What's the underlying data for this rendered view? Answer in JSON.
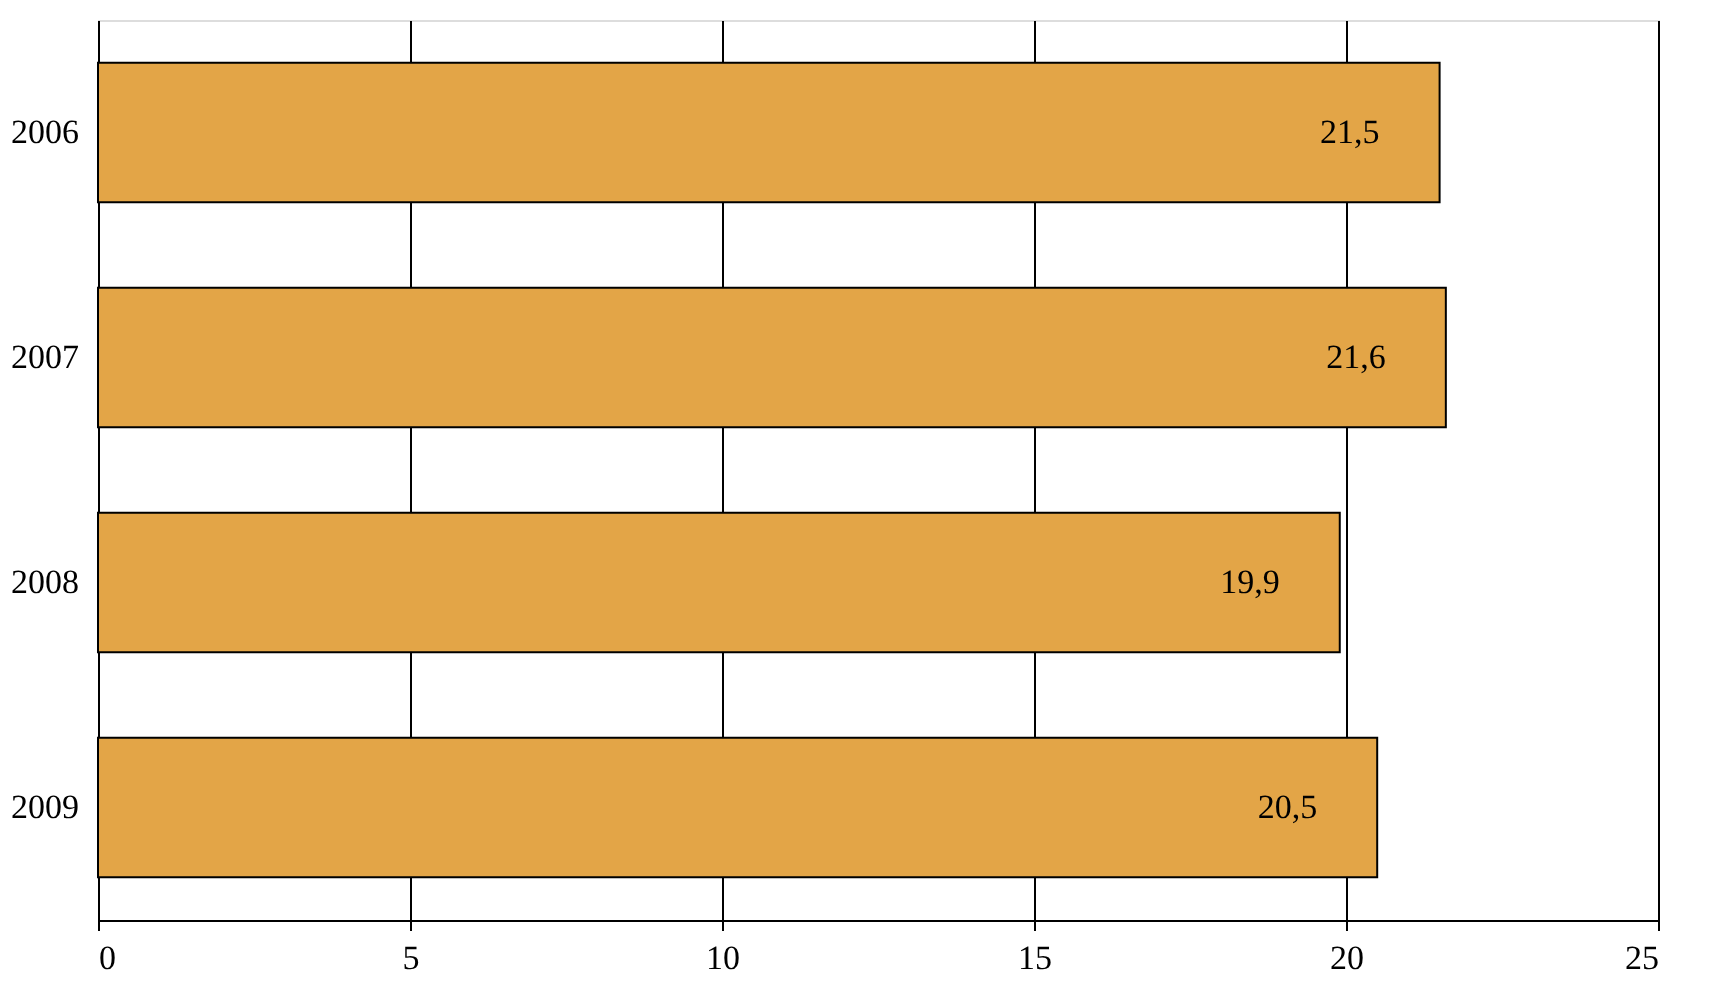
{
  "chart_data": {
    "type": "bar",
    "orientation": "horizontal",
    "categories": [
      "2006",
      "2007",
      "2008",
      "2009"
    ],
    "values": [
      21.5,
      21.6,
      19.9,
      20.5
    ],
    "value_labels": [
      "21,5",
      "21,6",
      "19,9",
      "20,5"
    ],
    "color": "#e3a547",
    "xlim": [
      0,
      25
    ],
    "xticks": [
      0,
      5,
      10,
      15,
      20,
      25
    ],
    "grid": "x"
  }
}
